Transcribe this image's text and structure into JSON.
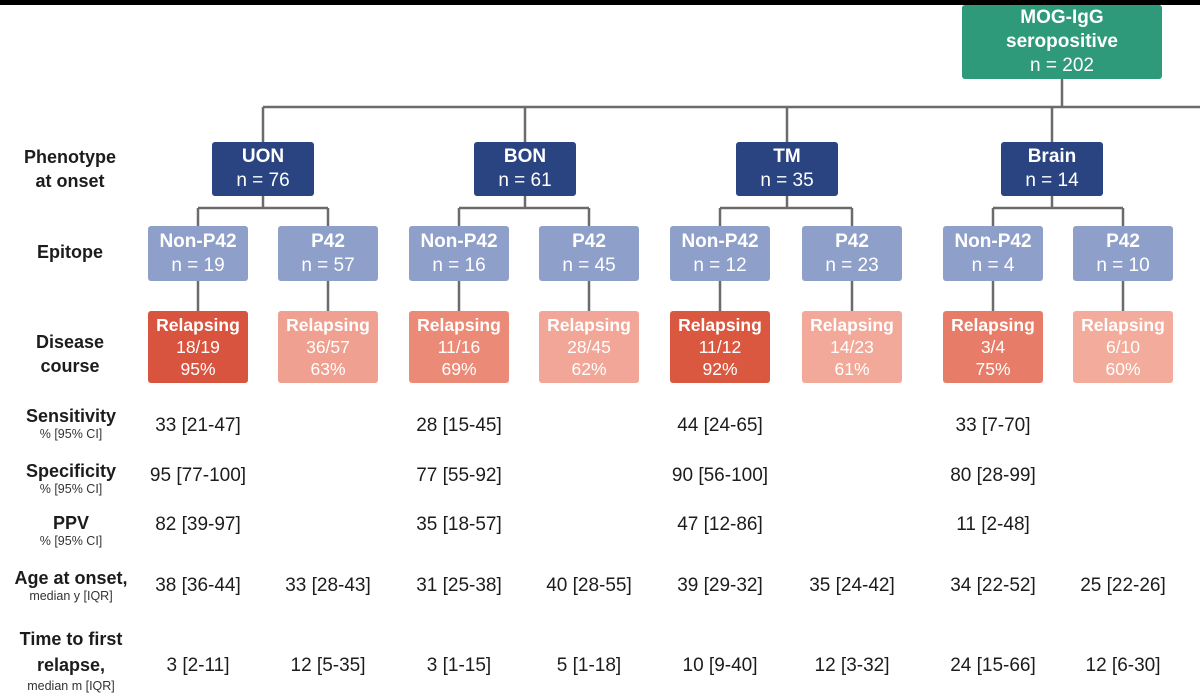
{
  "root": {
    "title_line1": "MOG-IgG",
    "title_line2": "seropositive",
    "count": "n = 202"
  },
  "row_labels": {
    "phenotype": [
      "Phenotype",
      "at onset"
    ],
    "epitope": "Epitope",
    "disease": [
      "Disease",
      "course"
    ]
  },
  "phenotypes": [
    {
      "name": "UON",
      "count": "n = 76"
    },
    {
      "name": "BON",
      "count": "n = 61"
    },
    {
      "name": "TM",
      "count": "n = 35"
    },
    {
      "name": "Brain",
      "count": "n = 14"
    }
  ],
  "epitopes": [
    {
      "name": "Non-P42",
      "count": "n = 19"
    },
    {
      "name": "P42",
      "count": "n = 57"
    },
    {
      "name": "Non-P42",
      "count": "n = 16"
    },
    {
      "name": "P42",
      "count": "n = 45"
    },
    {
      "name": "Non-P42",
      "count": "n = 12"
    },
    {
      "name": "P42",
      "count": "n = 23"
    },
    {
      "name": "Non-P42",
      "count": "n = 4"
    },
    {
      "name": "P42",
      "count": "n = 10"
    }
  ],
  "disease_course": [
    {
      "label": "Relapsing",
      "fraction": "18/19",
      "percent": "95%",
      "color": "#d9543e"
    },
    {
      "label": "Relapsing",
      "fraction": "36/57",
      "percent": "63%",
      "color": "#f0a090"
    },
    {
      "label": "Relapsing",
      "fraction": "11/16",
      "percent": "69%",
      "color": "#eb8b77"
    },
    {
      "label": "Relapsing",
      "fraction": "28/45",
      "percent": "62%",
      "color": "#f2a697"
    },
    {
      "label": "Relapsing",
      "fraction": "11/12",
      "percent": "92%",
      "color": "#db5840"
    },
    {
      "label": "Relapsing",
      "fraction": "14/23",
      "percent": "61%",
      "color": "#f2a99a"
    },
    {
      "label": "Relapsing",
      "fraction": "3/4",
      "percent": "75%",
      "color": "#e77d68"
    },
    {
      "label": "Relapsing",
      "fraction": "6/10",
      "percent": "60%",
      "color": "#f3ab9c"
    }
  ],
  "stats": [
    {
      "label": "Sensitivity",
      "sub": "% [95% CI]",
      "values": [
        "33 [21-47]",
        "",
        "28 [15-45]",
        "",
        "44 [24-65]",
        "",
        "33 [7-70]",
        ""
      ]
    },
    {
      "label": "Specificity",
      "sub": "% [95% CI]",
      "values": [
        "95 [77-100]",
        "",
        "77 [55-92]",
        "",
        "90 [56-100]",
        "",
        "80 [28-99]",
        ""
      ]
    },
    {
      "label": "PPV",
      "sub": "% [95% CI]",
      "values": [
        "82 [39-97]",
        "",
        "35 [18-57]",
        "",
        "47 [12-86]",
        "",
        "11 [2-48]",
        ""
      ]
    },
    {
      "label": "Age at onset,",
      "sub": "median y [IQR]",
      "values": [
        "38 [36-44]",
        "33 [28-43]",
        "31 [25-38]",
        "40 [28-55]",
        "39 [29-32]",
        "35 [24-42]",
        "34 [22-52]",
        "25 [22-26]"
      ]
    },
    {
      "label": "Time to first relapse,",
      "sub": "median m [IQR]",
      "values": [
        "3 [2-11]",
        "12 [5-35]",
        "3 [1-15]",
        "5 [1-18]",
        "10 [9-40]",
        "12 [3-32]",
        "24 [15-66]",
        "12 [6-30]"
      ]
    }
  ],
  "colors": {
    "root": "#2f9a79",
    "phenotype": "#2a4482",
    "epitope": "#8e9fc9",
    "line": "#6b6b6b"
  }
}
